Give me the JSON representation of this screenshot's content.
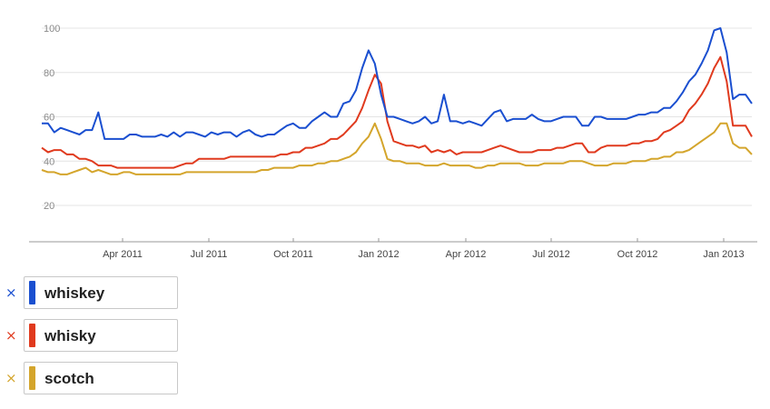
{
  "chart_data": {
    "type": "line",
    "y_ticks": [
      20,
      40,
      60,
      80,
      100
    ],
    "ylim": [
      0,
      100
    ],
    "x_ticks": [
      "Apr 2011",
      "Jul 2011",
      "Oct 2011",
      "Jan 2012",
      "Apr 2012",
      "Jul 2012",
      "Oct 2012",
      "Jan 2013"
    ],
    "grid": true,
    "series": [
      {
        "name": "whiskey",
        "color": "#1a4fd0",
        "values": [
          57,
          57,
          53,
          55,
          54,
          53,
          52,
          54,
          54,
          62,
          50,
          50,
          50,
          50,
          52,
          52,
          51,
          51,
          51,
          52,
          51,
          53,
          51,
          53,
          53,
          52,
          51,
          53,
          52,
          53,
          53,
          51,
          53,
          54,
          52,
          51,
          52,
          52,
          54,
          56,
          57,
          55,
          55,
          58,
          60,
          62,
          60,
          60,
          66,
          67,
          72,
          82,
          90,
          84,
          70,
          60,
          60,
          59,
          58,
          57,
          58,
          60,
          57,
          58,
          70,
          58,
          58,
          57,
          58,
          57,
          56,
          59,
          62,
          63,
          58,
          59,
          59,
          59,
          61,
          59,
          58,
          58,
          59,
          60,
          60,
          60,
          56,
          56,
          60,
          60,
          59,
          59,
          59,
          59,
          60,
          61,
          61,
          62,
          62,
          64,
          64,
          67,
          71,
          76,
          79,
          84,
          90,
          99,
          100,
          89,
          68,
          70,
          70,
          66
        ]
      },
      {
        "name": "whisky",
        "color": "#e03a1e",
        "values": [
          46,
          44,
          45,
          45,
          43,
          43,
          41,
          41,
          40,
          38,
          38,
          38,
          37,
          37,
          37,
          37,
          37,
          37,
          37,
          37,
          37,
          37,
          38,
          39,
          39,
          41,
          41,
          41,
          41,
          41,
          42,
          42,
          42,
          42,
          42,
          42,
          42,
          42,
          43,
          43,
          44,
          44,
          46,
          46,
          47,
          48,
          50,
          50,
          52,
          55,
          58,
          64,
          72,
          79,
          75,
          58,
          49,
          48,
          47,
          47,
          46,
          47,
          44,
          45,
          44,
          45,
          43,
          44,
          44,
          44,
          44,
          45,
          46,
          47,
          46,
          45,
          44,
          44,
          44,
          45,
          45,
          45,
          46,
          46,
          47,
          48,
          48,
          44,
          44,
          46,
          47,
          47,
          47,
          47,
          48,
          48,
          49,
          49,
          50,
          53,
          54,
          56,
          58,
          63,
          66,
          70,
          75,
          82,
          87,
          76,
          56,
          56,
          56,
          51
        ]
      },
      {
        "name": "scotch",
        "color": "#d4a52c",
        "values": [
          36,
          35,
          35,
          34,
          34,
          35,
          36,
          37,
          35,
          36,
          35,
          34,
          34,
          35,
          35,
          34,
          34,
          34,
          34,
          34,
          34,
          34,
          34,
          35,
          35,
          35,
          35,
          35,
          35,
          35,
          35,
          35,
          35,
          35,
          35,
          36,
          36,
          37,
          37,
          37,
          37,
          38,
          38,
          38,
          39,
          39,
          40,
          40,
          41,
          42,
          44,
          48,
          51,
          57,
          50,
          41,
          40,
          40,
          39,
          39,
          39,
          38,
          38,
          38,
          39,
          38,
          38,
          38,
          38,
          37,
          37,
          38,
          38,
          39,
          39,
          39,
          39,
          38,
          38,
          38,
          39,
          39,
          39,
          39,
          40,
          40,
          40,
          39,
          38,
          38,
          38,
          39,
          39,
          39,
          40,
          40,
          40,
          41,
          41,
          42,
          42,
          44,
          44,
          45,
          47,
          49,
          51,
          53,
          57,
          57,
          48,
          46,
          46,
          43
        ]
      }
    ]
  }
}
